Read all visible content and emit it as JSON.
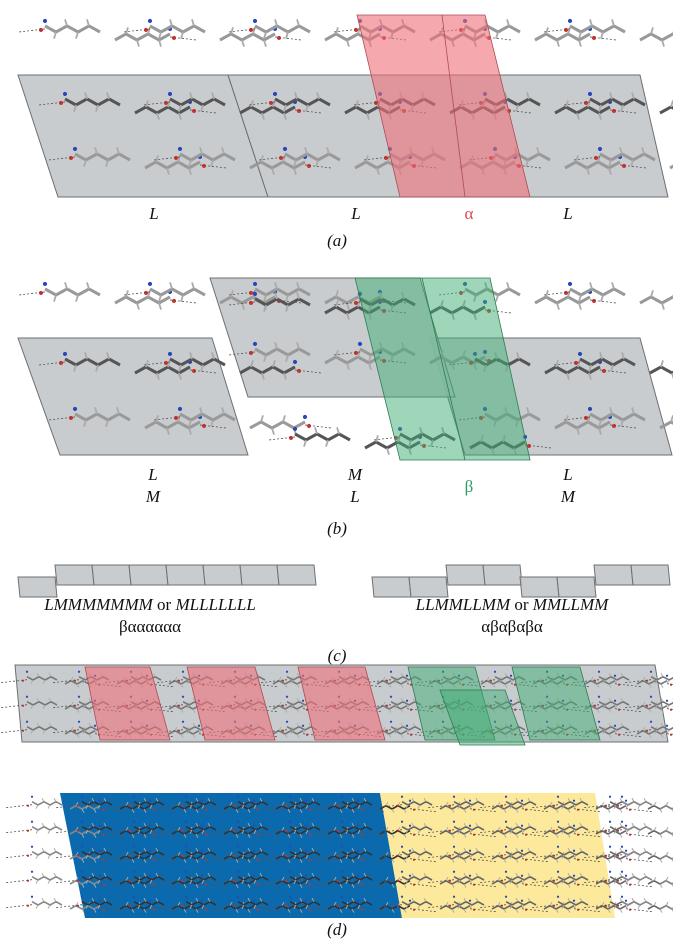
{
  "panel_a": {
    "caption": "(a)",
    "labels": [
      "L",
      "L",
      "α",
      "L"
    ]
  },
  "panel_b": {
    "caption": "(b)",
    "columns": [
      {
        "top": "L",
        "bottom": "M"
      },
      {
        "top": "M",
        "bottom": "L"
      },
      {
        "top": "L",
        "bottom": "M"
      }
    ],
    "beta": "β"
  },
  "panel_c": {
    "caption": "(c)",
    "left": {
      "sequence": "LMMMMMMM",
      "connector": "or",
      "alternative": "MLLLLLLL",
      "symbols": "βαααααα"
    },
    "right": {
      "sequence": "LLMMLLMM",
      "connector": "or",
      "alternative": "MMLLMM",
      "symbols": "αβαβαβα"
    }
  },
  "panel_d": {
    "caption": "(d)"
  }
}
